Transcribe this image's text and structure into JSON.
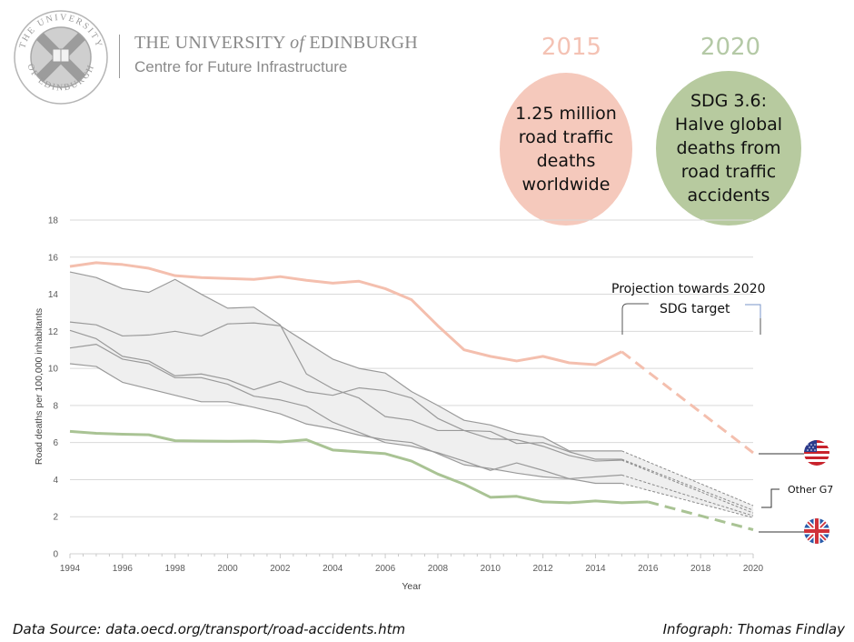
{
  "header": {
    "university": "THE UNIVERSITY",
    "of": "of",
    "edinburgh": "EDINBURGH",
    "centre": "Centre for Future Infrastructure",
    "seal_text_top": "THE UNIVERSITY",
    "seal_text_bottom": "OF EDINBURGH"
  },
  "callouts": {
    "left": {
      "year": "2015",
      "lines": [
        "1.25 million",
        "road traffic",
        "deaths",
        "worldwide"
      ],
      "color": "#f5c9bc",
      "year_color": "#f4c2b4"
    },
    "right": {
      "year": "2020",
      "lines": [
        "SDG 3.6:",
        "Halve global",
        "deaths from",
        "road traffic",
        "accidents"
      ],
      "color": "#b7ca9f",
      "year_color": "#b4c9a6"
    }
  },
  "annotations": {
    "projection_line1": "Projection towards  2020",
    "projection_line2": "SDG target",
    "other_g7": "Other G7",
    "usa_flag": "usa-flag-icon",
    "uk_flag": "uk-flag-icon"
  },
  "footer": {
    "source": "Data Source: data.oecd.org/transport/road-accidents.htm",
    "credit": "Infograph: Thomas Findlay"
  },
  "chart_data": {
    "type": "line",
    "title": "",
    "xlabel": "Year",
    "ylabel": "Road deaths per 100,000 inhabitants",
    "xlim": [
      1994,
      2020
    ],
    "ylim": [
      0,
      18
    ],
    "xticks": [
      1994,
      1996,
      1998,
      2000,
      2002,
      2004,
      2006,
      2008,
      2010,
      2012,
      2014,
      2016,
      2018,
      2020
    ],
    "yticks": [
      0,
      2,
      4,
      6,
      8,
      10,
      12,
      14,
      16,
      18
    ],
    "grid": "horizontal",
    "colors": {
      "usa": "#f4bfae",
      "uk": "#a9c394",
      "other": "#9a9a9a",
      "band": "#efefef"
    },
    "series": [
      {
        "name": "United States",
        "role": "usa",
        "x": [
          1994,
          1995,
          1996,
          1997,
          1998,
          1999,
          2000,
          2001,
          2002,
          2003,
          2004,
          2005,
          2006,
          2007,
          2008,
          2009,
          2010,
          2011,
          2012,
          2013,
          2014,
          2015
        ],
        "values": [
          15.5,
          15.7,
          15.6,
          15.4,
          15.0,
          14.9,
          14.85,
          14.8,
          14.95,
          14.75,
          14.6,
          14.7,
          14.3,
          13.7,
          12.3,
          11.0,
          10.65,
          10.4,
          10.65,
          10.3,
          10.2,
          10.9
        ],
        "projection": {
          "x": [
            2015,
            2020
          ],
          "values": [
            10.9,
            5.45
          ]
        }
      },
      {
        "name": "United Kingdom",
        "role": "uk",
        "x": [
          1994,
          1995,
          1996,
          1997,
          1998,
          1999,
          2000,
          2001,
          2002,
          2003,
          2004,
          2005,
          2006,
          2007,
          2008,
          2009,
          2010,
          2011,
          2012,
          2013,
          2014,
          2015,
          2016
        ],
        "values": [
          6.6,
          6.5,
          6.45,
          6.42,
          6.1,
          6.08,
          6.07,
          6.08,
          6.03,
          6.15,
          5.6,
          5.5,
          5.4,
          5.0,
          4.3,
          3.75,
          3.05,
          3.1,
          2.8,
          2.75,
          2.85,
          2.75,
          2.8
        ],
        "projection": {
          "x": [
            2016,
            2020
          ],
          "values": [
            2.8,
            1.3
          ]
        }
      },
      {
        "name": "Other G7 A",
        "role": "other",
        "x": [
          1994,
          1995,
          1996,
          1997,
          1998,
          1999,
          2000,
          2001,
          2002,
          2003,
          2004,
          2005,
          2006,
          2007,
          2008,
          2009,
          2010,
          2011,
          2012,
          2013,
          2014,
          2015
        ],
        "values": [
          15.2,
          14.9,
          14.3,
          14.1,
          14.8,
          14.0,
          13.25,
          13.3,
          12.35,
          9.7,
          8.9,
          8.4,
          7.4,
          7.2,
          6.65,
          6.65,
          6.6,
          5.95,
          6.0,
          5.5,
          5.1,
          5.1
        ],
        "projection": {
          "x": [
            2015,
            2020
          ],
          "values": [
            5.1,
            2.35
          ]
        }
      },
      {
        "name": "Other G7 B",
        "role": "other",
        "x": [
          1994,
          1995,
          1996,
          1997,
          1998,
          1999,
          2000,
          2001,
          2002,
          2003,
          2004,
          2005,
          2006,
          2007,
          2008,
          2009,
          2010,
          2011,
          2012,
          2013,
          2014,
          2015
        ],
        "values": [
          12.5,
          12.35,
          11.75,
          11.8,
          12.0,
          11.75,
          12.4,
          12.45,
          12.3,
          11.4,
          10.5,
          10.0,
          9.75,
          8.75,
          8.0,
          7.2,
          6.95,
          6.5,
          6.3,
          5.55,
          5.55,
          5.55
        ],
        "projection": {
          "x": [
            2015,
            2020
          ],
          "values": [
            5.55,
            2.6
          ]
        }
      },
      {
        "name": "Other G7 C",
        "role": "other",
        "x": [
          1994,
          1995,
          1996,
          1997,
          1998,
          1999,
          2000,
          2001,
          2002,
          2003,
          2004,
          2005,
          2006,
          2007,
          2008,
          2009,
          2010,
          2011,
          2012,
          2013,
          2014,
          2015
        ],
        "values": [
          12.05,
          11.6,
          10.65,
          10.4,
          9.6,
          9.7,
          9.4,
          8.85,
          9.3,
          8.75,
          8.55,
          8.95,
          8.8,
          8.4,
          7.3,
          6.65,
          6.2,
          6.15,
          5.8,
          5.3,
          5.0,
          5.05
        ],
        "projection": {
          "x": [
            2015,
            2020
          ],
          "values": [
            5.05,
            2.2
          ]
        }
      },
      {
        "name": "Other G7 D",
        "role": "other",
        "x": [
          1994,
          1995,
          1996,
          1997,
          1998,
          1999,
          2000,
          2001,
          2002,
          2003,
          2004,
          2005,
          2006,
          2007,
          2008,
          2009,
          2010,
          2011,
          2012,
          2013,
          2014,
          2015
        ],
        "values": [
          11.1,
          11.3,
          10.5,
          10.25,
          9.5,
          9.5,
          9.15,
          8.5,
          8.3,
          7.95,
          7.1,
          6.55,
          6.0,
          5.8,
          5.45,
          5.0,
          4.5,
          4.9,
          4.5,
          4.05,
          4.15,
          4.25
        ],
        "projection": {
          "x": [
            2015,
            2020
          ],
          "values": [
            4.25,
            2.05
          ]
        }
      },
      {
        "name": "Other G7 E",
        "role": "other",
        "x": [
          1994,
          1995,
          1996,
          1997,
          1998,
          1999,
          2000,
          2001,
          2002,
          2003,
          2004,
          2005,
          2006,
          2007,
          2008,
          2009,
          2010,
          2011,
          2012,
          2013,
          2014,
          2015
        ],
        "values": [
          10.25,
          10.1,
          9.25,
          8.9,
          8.55,
          8.2,
          8.2,
          7.9,
          7.55,
          7.0,
          6.75,
          6.4,
          6.15,
          6.0,
          5.4,
          4.8,
          4.6,
          4.35,
          4.15,
          4.05,
          3.8,
          3.8
        ],
        "projection": {
          "x": [
            2015,
            2020
          ],
          "values": [
            3.8,
            1.95
          ]
        }
      }
    ]
  }
}
